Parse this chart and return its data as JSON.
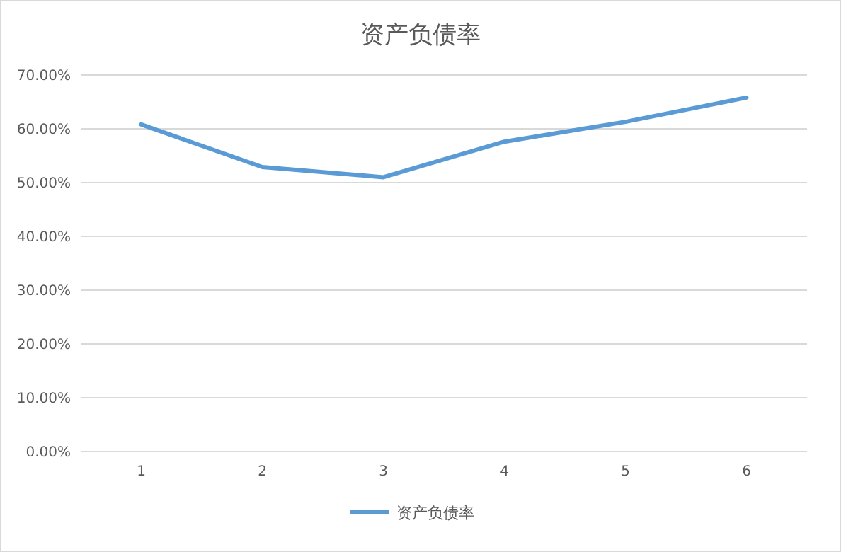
{
  "chart_data": {
    "type": "line",
    "title": "资产负债率",
    "categories": [
      "1",
      "2",
      "3",
      "4",
      "5",
      "6"
    ],
    "series": [
      {
        "name": "资产负债率",
        "color": "#5b9bd5",
        "values": [
          60.8,
          52.9,
          51.0,
          57.6,
          61.3,
          65.8
        ]
      }
    ],
    "ylim": [
      0,
      70
    ],
    "yticks": [
      {
        "value": 0,
        "label": "0.00%"
      },
      {
        "value": 10,
        "label": "10.00%"
      },
      {
        "value": 20,
        "label": "20.00%"
      },
      {
        "value": 30,
        "label": "30.00%"
      },
      {
        "value": 40,
        "label": "40.00%"
      },
      {
        "value": 50,
        "label": "50.00%"
      },
      {
        "value": 60,
        "label": "60.00%"
      },
      {
        "value": 70,
        "label": "70.00%"
      }
    ],
    "grid": "y",
    "legend": "bottom",
    "marker": "none",
    "line_style": "solid"
  }
}
